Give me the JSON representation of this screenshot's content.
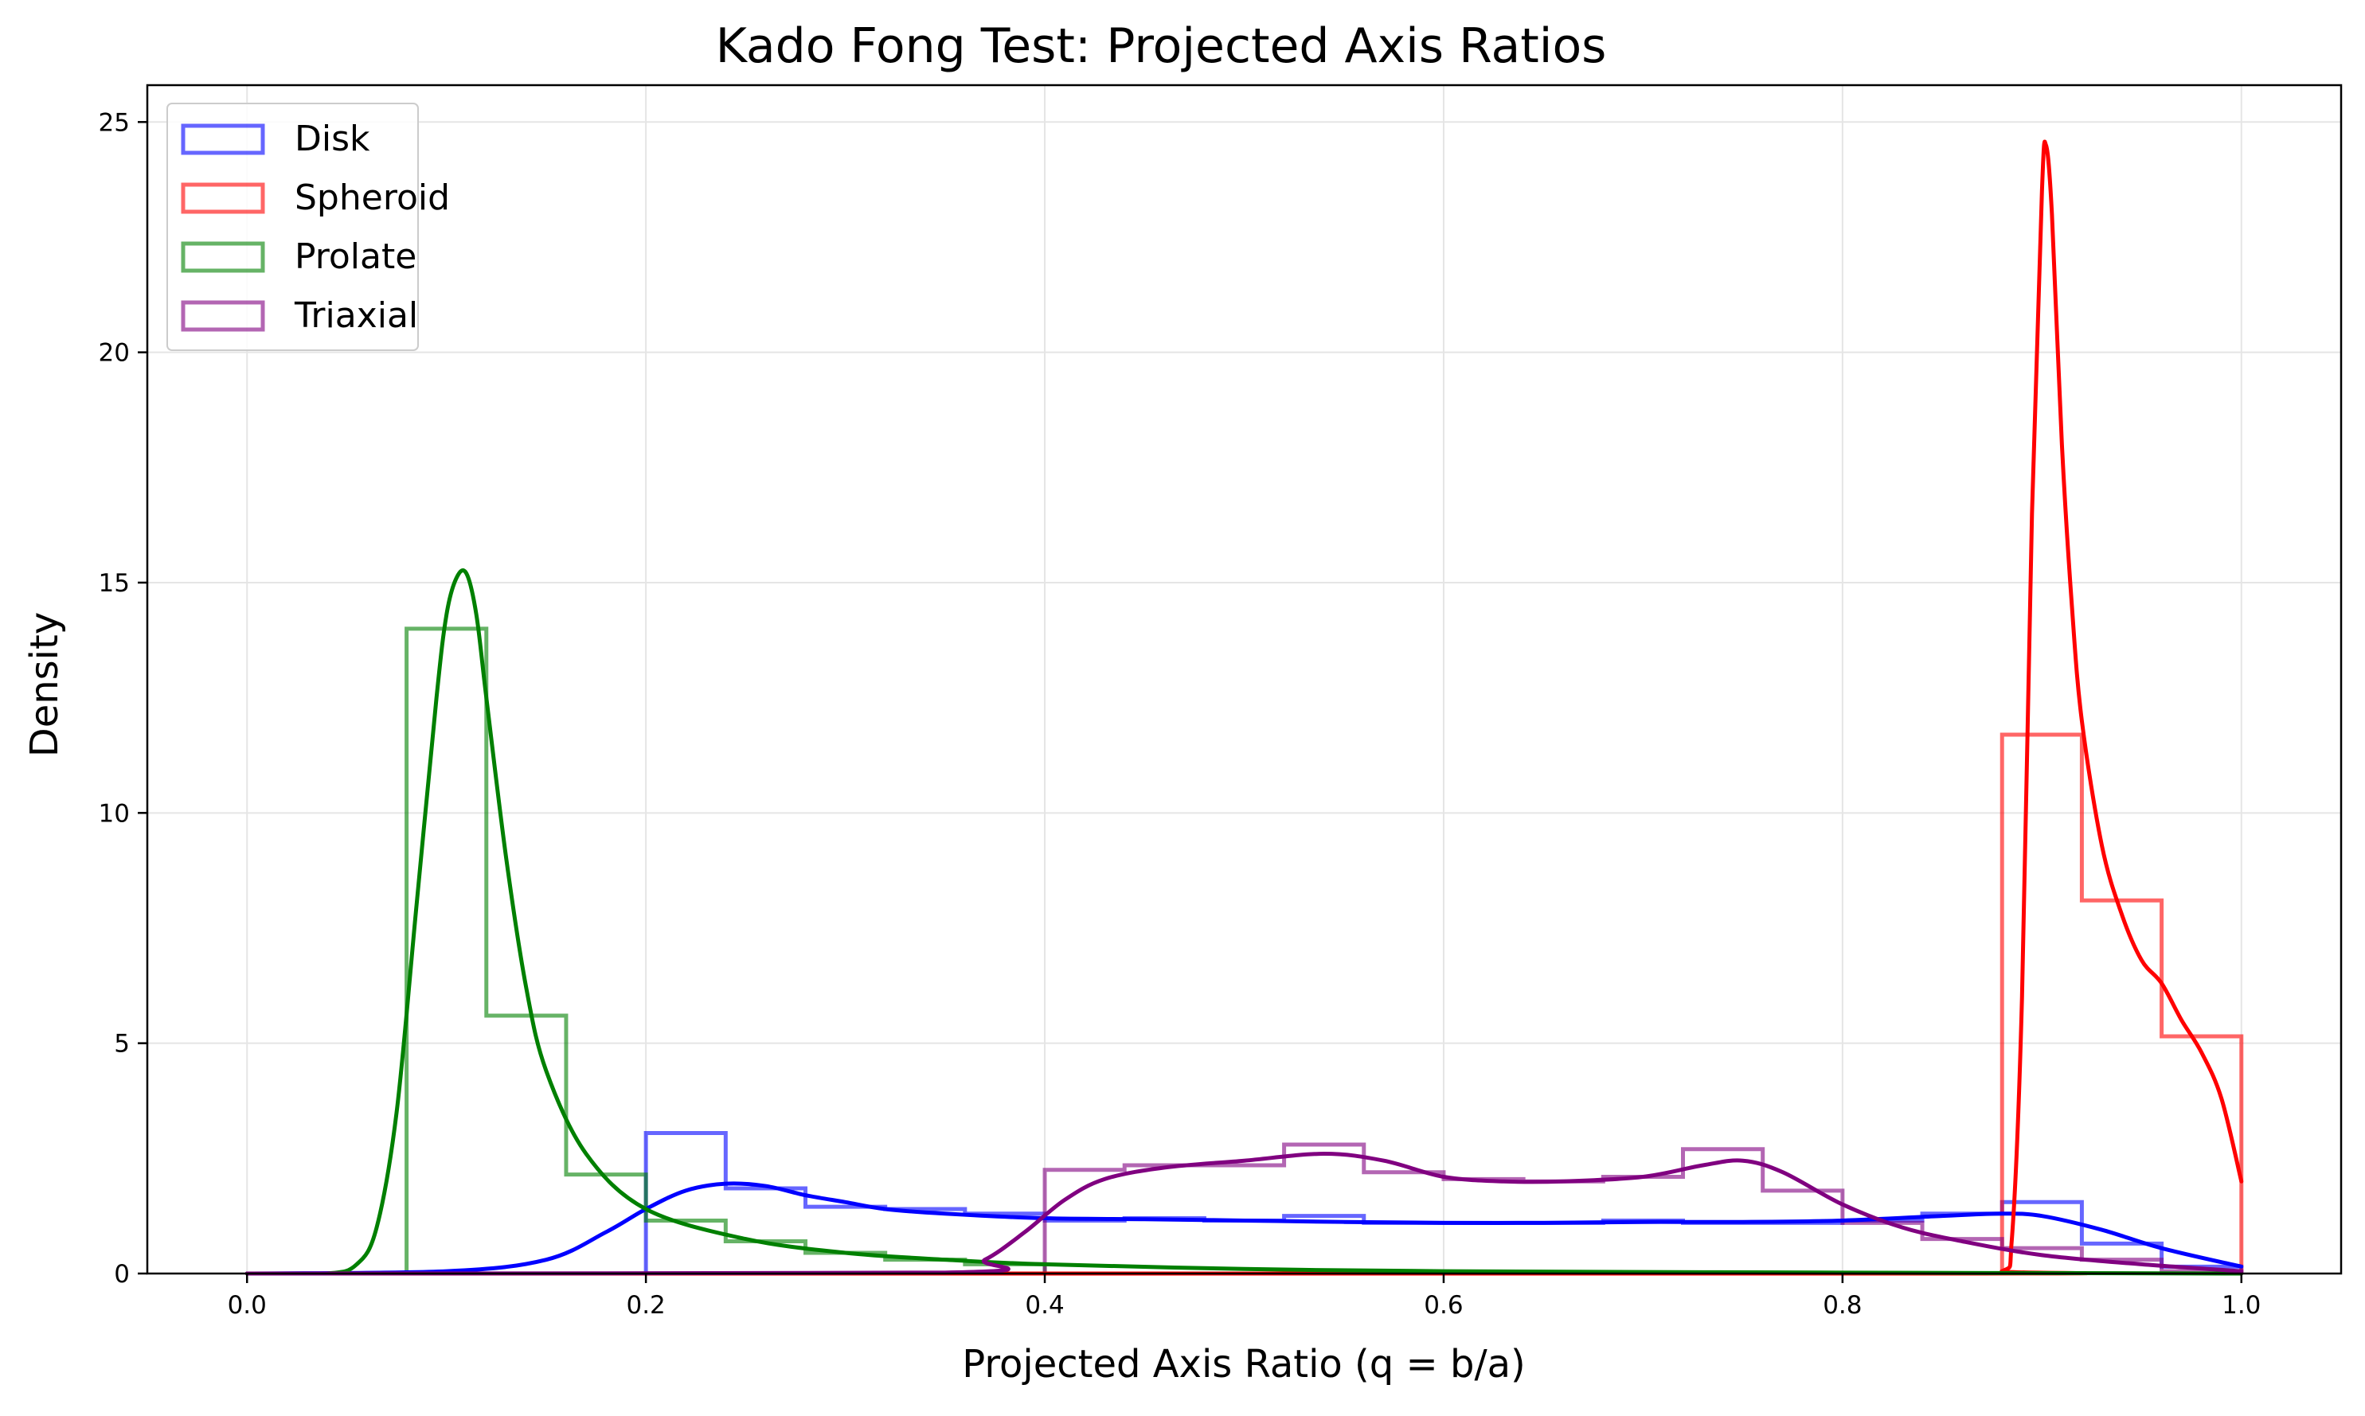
{
  "chart_data": {
    "type": "histogram",
    "title": "Kado Fong Test: Projected Axis Ratios",
    "xlabel": "Projected Axis Ratio (q = b/a)",
    "ylabel": "Density",
    "xlim": [
      -0.05,
      1.05
    ],
    "ylim": [
      0,
      25.8
    ],
    "xticks": [
      0.0,
      0.2,
      0.4,
      0.6,
      0.8,
      1.0
    ],
    "xtick_labels": [
      "0.0",
      "0.2",
      "0.4",
      "0.6",
      "0.8",
      "1.0"
    ],
    "yticks": [
      0,
      5,
      10,
      15,
      20,
      25
    ],
    "ytick_labels": [
      "0",
      "5",
      "10",
      "15",
      "20",
      "25"
    ],
    "grid": true,
    "legend_position": "top-left",
    "series": [
      {
        "name": "Disk",
        "color": "#0000ff",
        "bin_edges": [
          0.2,
          0.24,
          0.28,
          0.32,
          0.36,
          0.4,
          0.44,
          0.48,
          0.52,
          0.56,
          0.6,
          0.64,
          0.68,
          0.72,
          0.76,
          0.8,
          0.84,
          0.88,
          0.92,
          0.96,
          1.0
        ],
        "hist": [
          3.05,
          1.85,
          1.45,
          1.4,
          1.3,
          1.15,
          1.2,
          1.15,
          1.25,
          1.1,
          1.1,
          1.1,
          1.15,
          1.1,
          1.1,
          1.15,
          1.3,
          1.55,
          0.65,
          0.15
        ],
        "kde_x": [
          0.0,
          0.1,
          0.15,
          0.18,
          0.2,
          0.22,
          0.24,
          0.26,
          0.28,
          0.3,
          0.32,
          0.35,
          0.4,
          0.45,
          0.5,
          0.55,
          0.6,
          0.65,
          0.7,
          0.75,
          0.8,
          0.85,
          0.88,
          0.9,
          0.93,
          0.96,
          1.0
        ],
        "kde_y": [
          0.0,
          0.05,
          0.3,
          0.9,
          1.4,
          1.8,
          1.95,
          1.9,
          1.7,
          1.55,
          1.4,
          1.3,
          1.2,
          1.18,
          1.15,
          1.12,
          1.1,
          1.1,
          1.12,
          1.12,
          1.15,
          1.25,
          1.3,
          1.25,
          0.95,
          0.55,
          0.15
        ]
      },
      {
        "name": "Spheroid",
        "color": "#ff0000",
        "bin_edges": [
          0.88,
          0.92,
          0.96,
          1.0
        ],
        "hist": [
          11.7,
          8.1,
          5.15
        ],
        "kde_x": [
          0.0,
          0.85,
          0.88,
          0.885,
          0.89,
          0.895,
          0.9,
          0.902,
          0.905,
          0.91,
          0.915,
          0.92,
          0.93,
          0.94,
          0.95,
          0.96,
          0.97,
          0.98,
          0.99,
          1.0
        ],
        "kde_y": [
          0.0,
          0.0,
          0.05,
          0.8,
          6.0,
          16.5,
          23.5,
          24.5,
          23.0,
          18.0,
          14.5,
          12.0,
          9.3,
          7.8,
          6.8,
          6.3,
          5.5,
          4.8,
          3.8,
          2.0
        ]
      },
      {
        "name": "Prolate",
        "color": "#008000",
        "bin_edges": [
          0.08,
          0.12,
          0.16,
          0.2,
          0.24,
          0.28,
          0.32,
          0.36,
          0.4
        ],
        "hist": [
          14.0,
          5.6,
          2.15,
          1.15,
          0.7,
          0.45,
          0.3,
          0.2
        ],
        "kde_x": [
          0.0,
          0.04,
          0.055,
          0.065,
          0.075,
          0.085,
          0.095,
          0.1,
          0.105,
          0.11,
          0.115,
          0.12,
          0.13,
          0.14,
          0.15,
          0.17,
          0.2,
          0.25,
          0.3,
          0.35,
          0.4,
          0.5,
          0.6,
          0.8,
          1.0
        ],
        "kde_y": [
          0.0,
          0.0,
          0.2,
          1.0,
          3.5,
          8.0,
          12.5,
          14.3,
          15.1,
          15.2,
          14.3,
          12.5,
          9.0,
          6.2,
          4.4,
          2.6,
          1.4,
          0.75,
          0.45,
          0.3,
          0.2,
          0.1,
          0.05,
          0.02,
          0.0
        ]
      },
      {
        "name": "Triaxial",
        "color": "#800080",
        "bin_edges": [
          0.4,
          0.44,
          0.48,
          0.52,
          0.56,
          0.6,
          0.64,
          0.68,
          0.72,
          0.76,
          0.8,
          0.84,
          0.88,
          0.92,
          0.96,
          1.0
        ],
        "hist": [
          2.25,
          2.35,
          2.35,
          2.8,
          2.2,
          2.05,
          2.0,
          2.1,
          2.7,
          1.8,
          1.1,
          0.75,
          0.55,
          0.3,
          0.05
        ],
        "kde_x": [
          0.0,
          0.35,
          0.37,
          0.39,
          0.41,
          0.43,
          0.46,
          0.5,
          0.54,
          0.57,
          0.6,
          0.63,
          0.66,
          0.7,
          0.73,
          0.75,
          0.77,
          0.8,
          0.83,
          0.86,
          0.9,
          0.95,
          1.0
        ],
        "kde_y": [
          0.0,
          0.02,
          0.3,
          0.9,
          1.6,
          2.05,
          2.3,
          2.45,
          2.6,
          2.45,
          2.1,
          2.0,
          2.0,
          2.1,
          2.35,
          2.45,
          2.2,
          1.5,
          1.0,
          0.7,
          0.4,
          0.2,
          0.05
        ]
      }
    ]
  }
}
